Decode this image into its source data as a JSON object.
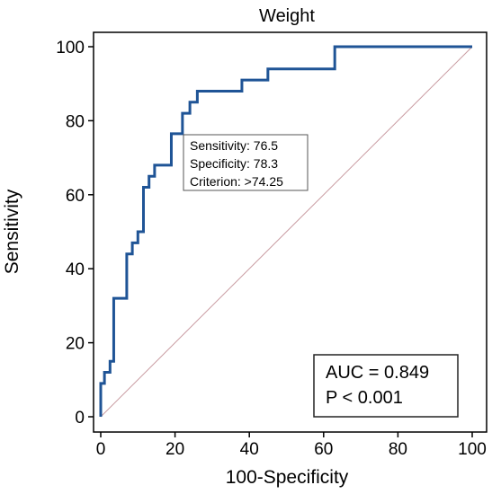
{
  "chart_data": {
    "type": "line",
    "title": "Weight",
    "xlabel": "100-Specificity",
    "ylabel": "Sensitivity",
    "xlim": [
      0,
      100
    ],
    "ylim": [
      0,
      100
    ],
    "x_ticks": [
      "0",
      "20",
      "40",
      "60",
      "80",
      "100"
    ],
    "y_ticks": [
      "0",
      "20",
      "40",
      "60",
      "80",
      "100"
    ],
    "grid": false,
    "colors": {
      "roc": "#1f5496",
      "reference": "#c89aa0"
    },
    "series": [
      {
        "x": [
          0,
          0,
          1,
          1,
          2.5,
          2.5,
          3.5,
          3.5,
          7,
          7,
          8.5,
          8.5,
          10,
          10,
          11.5,
          11.5,
          13,
          13,
          14.5,
          14.5,
          19,
          19,
          22,
          22,
          24,
          24,
          26,
          26,
          38,
          38,
          45,
          45,
          63,
          63,
          100
        ],
        "y": [
          0,
          9,
          9,
          12,
          12,
          15,
          15,
          32,
          32,
          44,
          44,
          47,
          47,
          50,
          50,
          62,
          62,
          65,
          65,
          68,
          68,
          76.5,
          76.5,
          82,
          82,
          85,
          85,
          88,
          88,
          91,
          91,
          94,
          94,
          100,
          100
        ]
      },
      {
        "x": [
          0,
          100
        ],
        "y": [
          0,
          100
        ]
      }
    ],
    "annotation": {
      "lines": [
        "Sensitivity: 76.5",
        "Specificity: 78.3",
        "Criterion: >74.25"
      ]
    },
    "stats": {
      "auc": "AUC = 0.849",
      "p": "P < 0.001"
    }
  }
}
